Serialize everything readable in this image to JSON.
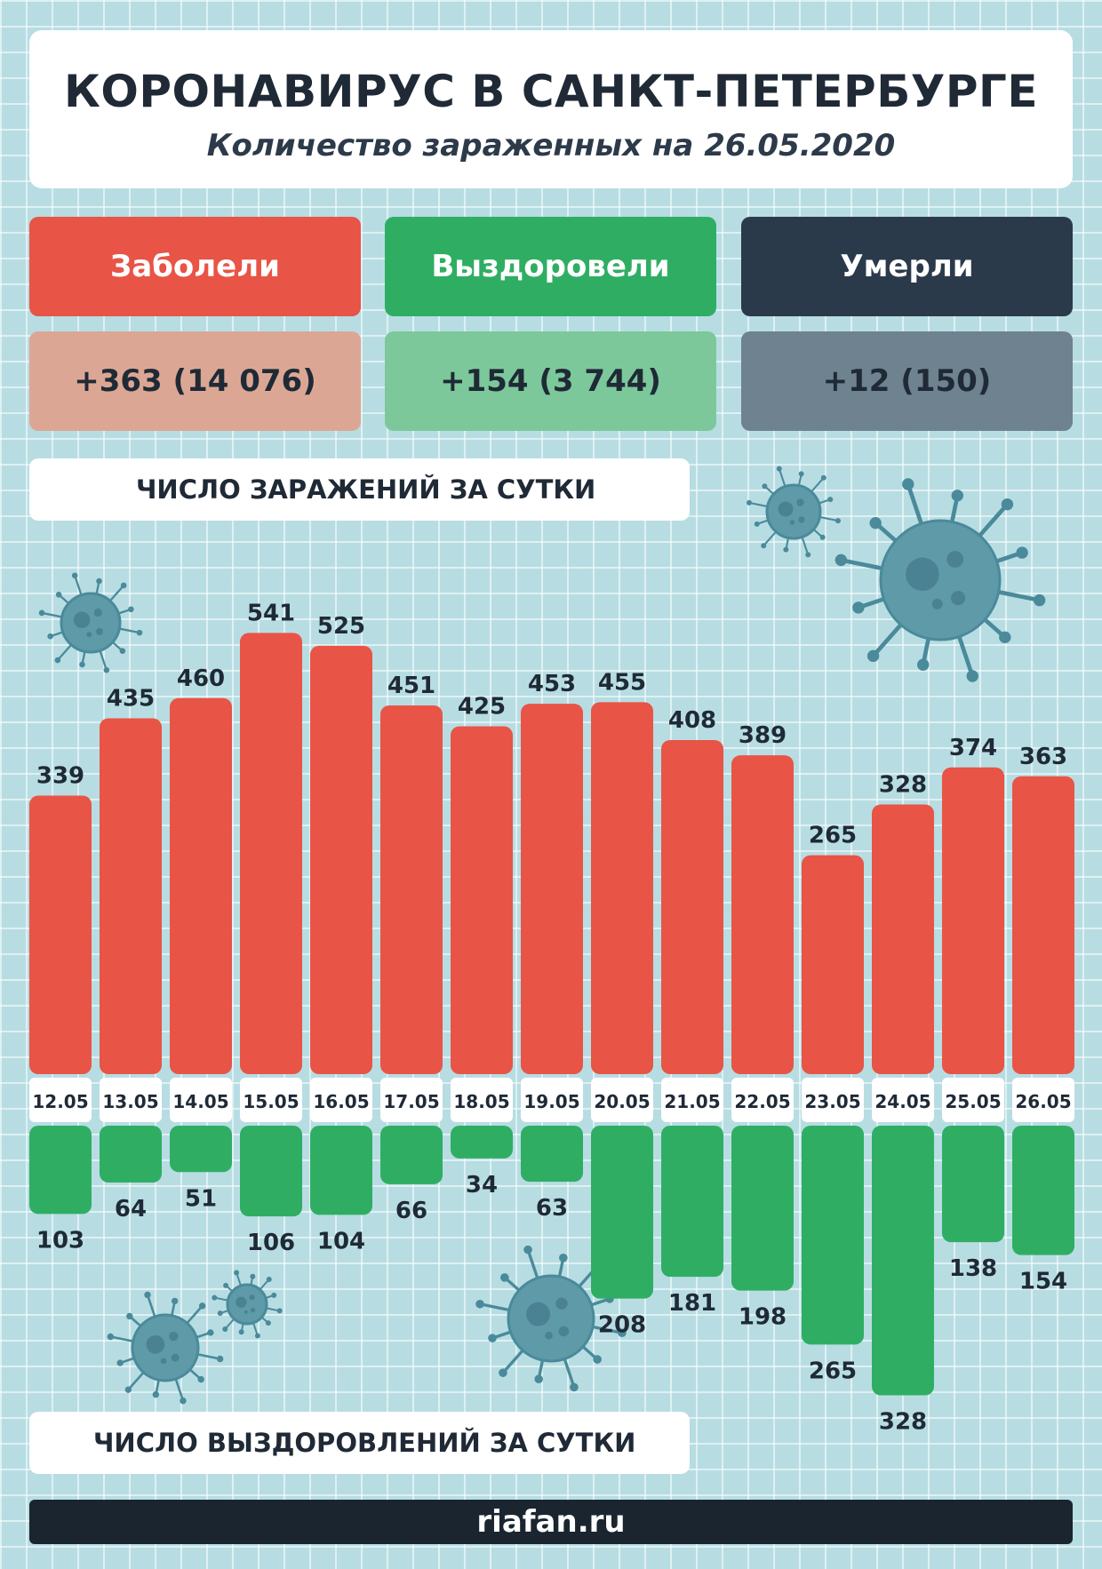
{
  "header": {
    "title": "КОРОНАВИРУС В САНКТ-ПЕТЕРБУРГЕ",
    "subtitle": "Количество зараженных на 26.05.2020"
  },
  "stats": [
    {
      "label": "Заболели",
      "value": "+363 (14 076)",
      "color": "#e85446",
      "value_bg": "#dba794"
    },
    {
      "label": "Выздоровели",
      "value": "+154 (3 744)",
      "color": "#2fae63",
      "value_bg": "#7cc89a"
    },
    {
      "label": "Умерли",
      "value": "+12 (150)",
      "color": "#2b3a4b",
      "value_bg": "#6e8290"
    }
  ],
  "sections": {
    "infections_label": "ЧИСЛО ЗАРАЖЕНИЙ ЗА СУТКИ",
    "recoveries_label": "ЧИСЛО ВЫЗДОРОВЛЕНИЙ ЗА СУТКИ"
  },
  "footer": {
    "site": "riafan.ru"
  },
  "chart_data": {
    "type": "bar",
    "categories": [
      "12.05",
      "13.05",
      "14.05",
      "15.05",
      "16.05",
      "17.05",
      "18.05",
      "19.05",
      "20.05",
      "21.05",
      "22.05",
      "23.05",
      "24.05",
      "25.05",
      "26.05"
    ],
    "series": [
      {
        "values": [
          339,
          435,
          460,
          541,
          525,
          451,
          425,
          453,
          455,
          408,
          389,
          265,
          328,
          374,
          363
        ],
        "color": "#e85446",
        "direction": "up"
      },
      {
        "values": [
          103,
          64,
          51,
          106,
          104,
          66,
          34,
          63,
          208,
          181,
          198,
          265,
          328,
          138,
          154
        ],
        "color": "#2fae63",
        "direction": "down"
      }
    ],
    "grid": true
  }
}
